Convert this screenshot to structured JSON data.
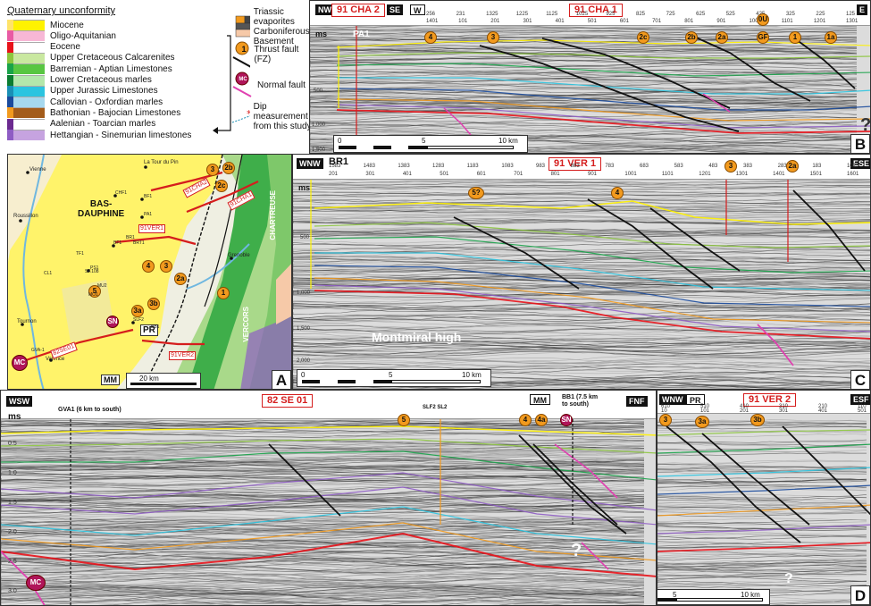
{
  "legend": {
    "title": "Quaternary unconformity",
    "units": [
      {
        "label": "Miocene",
        "color": "#fff200",
        "color_left": "#ffe36a"
      },
      {
        "label": "Oligo-Aquitanian",
        "color": "#f7b7d6",
        "color_left": "#e95aa4"
      },
      {
        "label": "Eocene",
        "color": "#ffffff",
        "color_left": "#e8121a"
      },
      {
        "label": "Upper Cretaceous Calcarenites",
        "color": "#c9e8a0",
        "color_left": "#8dc63f"
      },
      {
        "label": "Barremian - Aptian Limestones",
        "color": "#58c642",
        "color_left": "#1aa34a"
      },
      {
        "label": "Lower Cretaceous marles",
        "color": "#b3e7ab",
        "color_left": "#0b7d31"
      },
      {
        "label": "Upper Jurassic Limestones",
        "color": "#2bc4e0",
        "color_left": "#1a8fb5"
      },
      {
        "label": "Callovian - Oxfordian marles",
        "color": "#a6d8ee",
        "color_left": "#1a4a9c"
      },
      {
        "label": "Bathonian - Bajocian Limestones",
        "color": "#a35c1a",
        "color_left": "#f29a1e"
      },
      {
        "label": "Aalenian - Toarcian marles",
        "color": "#ffffff",
        "color_left": "#6b2a8f"
      },
      {
        "label": "Hettangian - Sinemurian limestones",
        "color": "#c6a3e0",
        "color_left": "#8e5cc4"
      }
    ],
    "right": {
      "triassic": "Triassic evaporites",
      "carboniferous": "Carboniferous",
      "basement": "Basement",
      "thrust_num": "1",
      "thrust": "Thrust fault (FZ)",
      "normal_abbr": "MC",
      "normal": "Normal fault",
      "dip_line1": "Dip measurement",
      "dip_line2": "from this study"
    }
  },
  "panelB": {
    "left_box": "91 CHA 2",
    "nw": "NW",
    "se": "SE",
    "w": "W",
    "title": "91 CHA 1",
    "e": "E",
    "well": "PA1",
    "ms": "ms",
    "times": [
      "500",
      "1,000",
      "1,500"
    ],
    "faults": [
      "4",
      "3",
      "2c",
      "2b",
      "2a",
      "0U",
      "GF",
      "1",
      "1a"
    ],
    "qm": "?",
    "scale_start": "0",
    "scale_mid": "5",
    "scale_end": "10 km",
    "corner": "B",
    "ticks": [
      "256",
      "231",
      "1325",
      "1225",
      "1125",
      "1025",
      "925",
      "825",
      "725",
      "625",
      "525",
      "425",
      "325",
      "225",
      "125",
      "1401",
      "101",
      "201",
      "301",
      "401",
      "501",
      "601",
      "701",
      "801",
      "901",
      "1001",
      "1101",
      "1201",
      "1301"
    ]
  },
  "panelC": {
    "wnw": "WNW",
    "well": "BR1",
    "title": "91 VER 1",
    "ese": "ESE",
    "ms": "ms",
    "times": [
      "500",
      "1,000",
      "1,500",
      "2,000"
    ],
    "faults": [
      "5?",
      "4",
      "3",
      "2a"
    ],
    "high": "Montmiral high",
    "scale_start": "0",
    "scale_mid": "5",
    "scale_end": "10 km",
    "corner": "C",
    "ticks": [
      "1583",
      "1483",
      "1383",
      "1283",
      "1183",
      "1083",
      "983",
      "883",
      "783",
      "683",
      "583",
      "483",
      "383",
      "283",
      "183",
      "101",
      "201",
      "301",
      "401",
      "501",
      "601",
      "701",
      "801",
      "901",
      "1001",
      "1101",
      "1201",
      "1301",
      "1401",
      "1501",
      "1601"
    ]
  },
  "panelD": {
    "wsw": "WSW",
    "title": "82 SE 01",
    "ms": "ms",
    "gva": "GVA1 (6 km to south)",
    "slf": "SLF2 SL2",
    "mm": "MM",
    "bb1_line1": "BB1 (7.5 km",
    "bb1_line2": "to south)",
    "fnf": "FNF",
    "times": [
      "0.5",
      "1.0",
      "1.5",
      "2.0",
      "2.5",
      "3.0"
    ],
    "faults": [
      "5",
      "4",
      "4a",
      "SN"
    ],
    "mc": "MC",
    "qm": "?"
  },
  "panelD2": {
    "wnw": "WNW",
    "pr": "PR",
    "title": "91 VER 2",
    "esf": "ESF",
    "faults": [
      "3",
      "3a",
      "3b"
    ],
    "qm": "?",
    "scale_start": "0",
    "scale_mid": "5",
    "scale_end": "10 km",
    "corner": "D",
    "ticks": [
      "610",
      "510",
      "410",
      "310",
      "210",
      "110",
      "10",
      "101",
      "201",
      "301",
      "401",
      "501"
    ]
  },
  "map": {
    "corner": "A",
    "places": [
      "Vienne",
      "Roussillon",
      "Tournon",
      "Valence",
      "La Tour du Pin",
      "Grenoble"
    ],
    "big1": "BAS-",
    "big2": "DAUPHINE",
    "chartreuse": "CHARTREUSE",
    "vercors": "VERCORS",
    "lines": [
      "91CHA2",
      "91CHA1",
      "91VER1",
      "82SE01",
      "91VER2"
    ],
    "pr": "PR",
    "mm": "MM",
    "scale": "20 km",
    "faults": [
      "3",
      "2b",
      "2c",
      "4",
      "3",
      "2a",
      "5",
      "3b",
      "3a",
      "1"
    ],
    "sn": "SN",
    "mc": "MC",
    "wells": [
      "CHF1",
      "BF1",
      "PA1",
      "BF1",
      "BRT1",
      "BR1",
      "PS1",
      "TF1",
      "SF.108",
      "MU2",
      "MO1",
      "CL1",
      "GVA-1",
      "BB1",
      "SLF2"
    ]
  }
}
